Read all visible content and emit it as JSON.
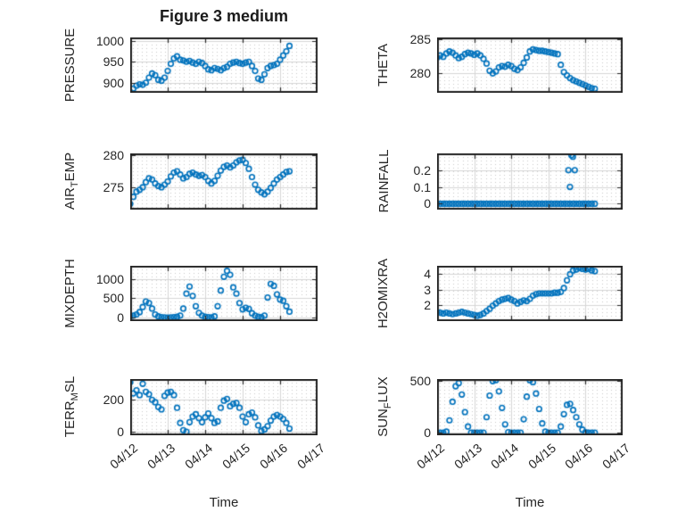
{
  "figure": {
    "title": "Figure 3 medium",
    "xlabel": "Time",
    "marker_color": "#0072BD",
    "axis_color": "#262626",
    "grid_major_color": "#d6d6d6",
    "grid_minor_color": "#c9c9c9",
    "xlim": [
      0,
      5
    ],
    "xtick_values": [
      0,
      1,
      2,
      3,
      4,
      5
    ],
    "xtick_labels": [
      "04/12",
      "04/13",
      "04/14",
      "04/15",
      "04/16",
      "04/17"
    ]
  },
  "chart_data": [
    {
      "id": "pressure",
      "type": "scatter",
      "ylabel": {
        "pre": "PRESSURE",
        "sub": "",
        "post": ""
      },
      "ytick_values": [
        900,
        950,
        1000
      ],
      "ytick_labels": [
        "900",
        "950",
        "1000"
      ],
      "ylim": [
        876,
        1008
      ],
      "series": {
        "t0": 0,
        "dt": 0.0833333,
        "values": [
          878,
          886,
          893,
          896,
          895,
          900,
          912,
          922,
          918,
          907,
          905,
          912,
          928,
          945,
          958,
          963,
          955,
          953,
          950,
          952,
          948,
          945,
          950,
          947,
          940,
          932,
          930,
          935,
          933,
          930,
          935,
          938,
          945,
          948,
          950,
          947,
          945,
          948,
          950,
          940,
          928,
          910,
          907,
          920,
          935,
          940,
          942,
          945,
          955,
          965,
          975,
          988
        ]
      }
    },
    {
      "id": "airtemp",
      "type": "scatter",
      "ylabel": {
        "pre": "AIR",
        "sub": "T",
        "post": "EMP"
      },
      "ytick_values": [
        275,
        280
      ],
      "ytick_labels": [
        "275",
        "280"
      ],
      "ylim": [
        271.5,
        280.3
      ],
      "series": {
        "t0": 0,
        "dt": 0.0833333,
        "values": [
          272.4,
          273.5,
          274.3,
          274.6,
          275.0,
          275.8,
          276.4,
          276.2,
          275.6,
          275.2,
          275.0,
          275.4,
          275.9,
          276.7,
          277.3,
          277.5,
          277.0,
          276.4,
          276.6,
          277.1,
          277.3,
          277.0,
          276.8,
          276.9,
          276.6,
          276.0,
          275.6,
          276.0,
          276.8,
          277.6,
          278.2,
          278.4,
          278.1,
          278.4,
          278.9,
          279.2,
          279.3,
          278.8,
          277.9,
          276.6,
          275.4,
          274.6,
          274.2,
          273.9,
          274.3,
          274.9,
          275.6,
          276.2,
          276.6,
          277.0,
          277.4,
          277.5
        ]
      }
    },
    {
      "id": "mixdepth",
      "type": "scatter",
      "ylabel": {
        "pre": "MIXDEPTH",
        "sub": "",
        "post": ""
      },
      "ytick_values": [
        0,
        500,
        1000
      ],
      "ytick_labels": [
        "0",
        "500",
        "1000"
      ],
      "ylim": [
        -80,
        1330
      ],
      "series": {
        "t0": 0,
        "dt": 0.0833333,
        "values": [
          40,
          60,
          90,
          150,
          280,
          420,
          380,
          240,
          90,
          40,
          20,
          15,
          10,
          15,
          20,
          30,
          60,
          240,
          620,
          800,
          560,
          300,
          130,
          60,
          30,
          20,
          15,
          40,
          300,
          700,
          1050,
          1200,
          1100,
          780,
          620,
          380,
          220,
          260,
          230,
          120,
          60,
          30,
          20,
          60,
          520,
          870,
          820,
          600,
          470,
          440,
          300,
          160
        ]
      }
    },
    {
      "id": "terrmsl",
      "type": "scatter",
      "ylabel": {
        "pre": "TERR",
        "sub": "M",
        "post": "SL"
      },
      "ytick_values": [
        0,
        200
      ],
      "ytick_labels": [
        "0",
        "200"
      ],
      "ylim": [
        -22,
        330
      ],
      "series": {
        "t0": 0,
        "dt": 0.0833333,
        "values": [
          310,
          240,
          260,
          230,
          300,
          250,
          235,
          200,
          185,
          155,
          140,
          225,
          245,
          250,
          230,
          150,
          55,
          10,
          0,
          60,
          95,
          110,
          85,
          60,
          90,
          115,
          85,
          55,
          65,
          150,
          195,
          205,
          160,
          175,
          180,
          150,
          95,
          60,
          110,
          120,
          90,
          40,
          5,
          15,
          35,
          70,
          95,
          105,
          95,
          80,
          55,
          20
        ]
      }
    },
    {
      "id": "theta",
      "type": "scatter",
      "ylabel": {
        "pre": "THETA",
        "sub": "",
        "post": ""
      },
      "ytick_values": [
        280,
        285
      ],
      "ytick_labels": [
        "280",
        "285"
      ],
      "ylim": [
        277.0,
        285.3
      ],
      "series": {
        "t0": 0,
        "dt": 0.0833333,
        "values": [
          282.3,
          282.6,
          282.4,
          282.9,
          283.2,
          283.0,
          282.6,
          282.2,
          282.4,
          282.8,
          283.0,
          282.9,
          282.7,
          282.9,
          282.6,
          282.1,
          281.4,
          280.3,
          279.9,
          280.2,
          280.8,
          281.0,
          280.9,
          281.2,
          281.0,
          280.6,
          280.4,
          280.8,
          281.5,
          282.3,
          283.2,
          283.5,
          283.4,
          283.3,
          283.3,
          283.2,
          283.1,
          283.0,
          282.9,
          282.8,
          281.2,
          280.1,
          279.6,
          279.2,
          278.9,
          278.7,
          278.5,
          278.3,
          278.1,
          277.9,
          277.7,
          277.6
        ]
      }
    },
    {
      "id": "rainfall",
      "type": "scatter",
      "ylabel": {
        "pre": "RAINFALL",
        "sub": "",
        "post": ""
      },
      "ytick_values": [
        0,
        0.1,
        0.2
      ],
      "ytick_labels": [
        "0",
        "0.1",
        "0.2"
      ],
      "ylim": [
        -0.035,
        0.3
      ],
      "series": {
        "t0": 0,
        "dt": 0.0833333,
        "values": [
          0,
          0,
          0,
          0,
          0,
          0,
          0,
          0,
          0,
          0,
          0,
          0,
          0,
          0,
          0,
          0,
          0,
          0,
          0,
          0,
          0,
          0,
          0,
          0,
          0,
          0,
          0,
          0,
          0,
          0,
          0,
          0,
          0,
          0,
          0,
          0,
          0,
          0,
          0,
          0,
          0,
          0,
          0,
          0,
          0,
          0,
          0,
          0,
          0,
          0,
          0,
          0
        ]
      },
      "extra_points": [
        [
          3.54,
          0.2
        ],
        [
          3.58,
          0.1
        ],
        [
          3.62,
          0.29
        ],
        [
          3.66,
          0.28
        ],
        [
          3.71,
          0.2
        ]
      ]
    },
    {
      "id": "h2omixra",
      "type": "scatter",
      "ylabel": {
        "pre": "H2OMIXRA",
        "sub": "",
        "post": ""
      },
      "ytick_values": [
        2,
        3,
        4
      ],
      "ytick_labels": [
        "2",
        "3",
        "4"
      ],
      "ylim": [
        0.95,
        4.55
      ],
      "series": {
        "t0": 0,
        "dt": 0.0833333,
        "values": [
          1.55,
          1.5,
          1.45,
          1.5,
          1.45,
          1.4,
          1.45,
          1.5,
          1.55,
          1.5,
          1.45,
          1.4,
          1.35,
          1.3,
          1.35,
          1.45,
          1.6,
          1.75,
          1.95,
          2.1,
          2.25,
          2.35,
          2.4,
          2.45,
          2.35,
          2.25,
          2.1,
          2.2,
          2.3,
          2.25,
          2.4,
          2.6,
          2.7,
          2.75,
          2.75,
          2.75,
          2.75,
          2.75,
          2.8,
          2.8,
          2.85,
          3.1,
          3.6,
          4.0,
          4.25,
          4.3,
          4.4,
          4.35,
          4.3,
          4.35,
          4.25,
          4.2
        ]
      }
    },
    {
      "id": "sunflux",
      "type": "scatter",
      "ylabel": {
        "pre": "SUN",
        "sub": "F",
        "post": "LUX"
      },
      "ytick_values": [
        0,
        500
      ],
      "ytick_labels": [
        "0",
        "500"
      ],
      "ylim": [
        -25,
        520
      ],
      "series": {
        "t0": 0,
        "dt": 0.0833333,
        "values": [
          0,
          0,
          0,
          10,
          120,
          300,
          450,
          480,
          370,
          200,
          60,
          0,
          0,
          0,
          0,
          0,
          150,
          360,
          500,
          510,
          400,
          240,
          80,
          5,
          0,
          0,
          0,
          0,
          130,
          350,
          510,
          490,
          380,
          230,
          90,
          10,
          0,
          0,
          0,
          0,
          60,
          180,
          270,
          280,
          220,
          150,
          80,
          30,
          5,
          0,
          0,
          0
        ]
      }
    }
  ]
}
